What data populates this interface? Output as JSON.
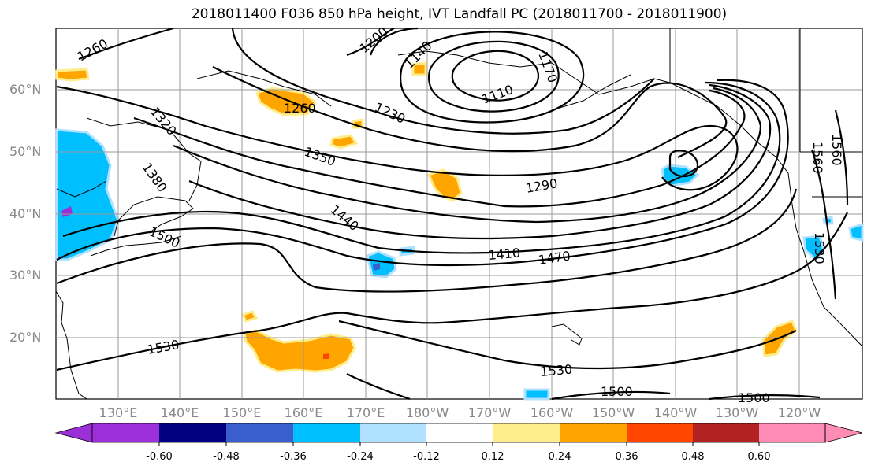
{
  "title": "2018011400 F036 850 hPa height, IVT Landfall PC (2018011700 - 2018011900)",
  "lat_labels": [
    "60°N",
    "50°N",
    "40°N",
    "30°N",
    "20°N"
  ],
  "lon_labels": [
    "130°E",
    "140°E",
    "150°E",
    "160°E",
    "170°E",
    "180°W",
    "170°W",
    "160°W",
    "150°W",
    "140°W",
    "130°W",
    "120°W"
  ],
  "contour_labels": [
    "1260",
    "1200",
    "1140",
    "1170",
    "1110",
    "1230",
    "1260",
    "1320",
    "1350",
    "1380",
    "1290",
    "1440",
    "1500",
    "1410",
    "1470",
    "1530",
    "1530",
    "1500",
    "1500",
    "1560",
    "1560",
    "1530"
  ],
  "colorbar": {
    "ticks": [
      "-0.60",
      "-0.48",
      "-0.36",
      "-0.24",
      "-0.12",
      "0.12",
      "0.24",
      "0.36",
      "0.48",
      "0.60"
    ],
    "colors": [
      "#9b30d9",
      "#000080",
      "#3a5fcd",
      "#00bfff",
      "#b0e2ff",
      "#ffffff",
      "#ffec8b",
      "#ffa500",
      "#ff4500",
      "#b22222",
      "#ff8cb4"
    ]
  }
}
